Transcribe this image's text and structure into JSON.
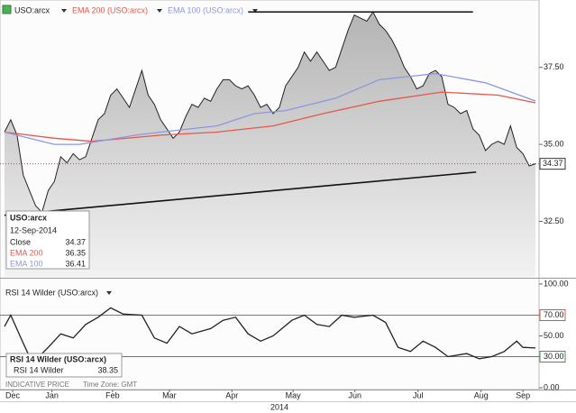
{
  "chart_data": [
    {
      "type": "line",
      "title": "USO:arcx",
      "series": [
        {
          "name": "USO:arcx",
          "color": "#222222",
          "fill": true,
          "values": [
            35.4,
            35.8,
            35.3,
            34.0,
            33.5,
            33.0,
            32.8,
            33.5,
            33.8,
            34.6,
            34.4,
            34.7,
            34.5,
            34.6,
            35.2,
            35.8,
            36.0,
            36.6,
            36.8,
            36.5,
            36.2,
            36.8,
            37.4,
            36.6,
            36.3,
            35.8,
            35.5,
            35.2,
            35.4,
            35.9,
            36.3,
            36.2,
            36.5,
            36.4,
            36.8,
            37.1,
            37.1,
            36.9,
            36.8,
            36.9,
            36.6,
            36.2,
            36.3,
            36.0,
            36.2,
            36.9,
            37.2,
            37.5,
            38.0,
            37.7,
            38.0,
            37.7,
            37.4,
            37.5,
            38.1,
            38.7,
            39.2,
            39.1,
            39.0,
            39.3,
            38.9,
            38.7,
            38.4,
            38.0,
            37.5,
            37.2,
            36.8,
            36.9,
            37.3,
            37.4,
            37.2,
            36.3,
            36.2,
            36.0,
            36.1,
            35.5,
            35.3,
            34.8,
            35.0,
            35.1,
            35.0,
            35.6,
            34.9,
            34.7,
            34.3,
            34.37
          ]
        },
        {
          "name": "EMA 200 (USO:arcx)",
          "color": "#e8564a",
          "x": [
            0,
            8,
            14,
            25,
            34,
            43,
            51,
            60,
            70,
            79,
            85
          ],
          "values": [
            35.4,
            35.2,
            35.1,
            35.3,
            35.4,
            35.6,
            36.0,
            36.4,
            36.7,
            36.6,
            36.35
          ]
        },
        {
          "name": "EMA 100 (USO:arcx)",
          "color": "#8898e2",
          "x": [
            0,
            8,
            12,
            21,
            25,
            34,
            40,
            45,
            53,
            60,
            69,
            77,
            85
          ],
          "values": [
            35.4,
            35.0,
            35.0,
            35.3,
            35.4,
            35.6,
            36.0,
            36.1,
            36.5,
            37.1,
            37.3,
            37.0,
            36.41
          ]
        }
      ],
      "trendlines": [
        {
          "x": [
            39,
            75
          ],
          "y": [
            39.3,
            39.3
          ]
        },
        {
          "x": [
            0,
            75.5
          ],
          "y": [
            32.7,
            34.1
          ]
        }
      ],
      "xlim": [
        0,
        85
      ],
      "ylim": [
        30.7,
        39.6
      ],
      "yticks": [
        {
          "value": 32.5,
          "label": "32.50"
        },
        {
          "value": 35,
          "label": "35.00"
        },
        {
          "value": 37.5,
          "label": "37.50"
        }
      ],
      "info_box": {
        "title": "USO:arcx",
        "date": "12-Sep-2014",
        "labels": [
          "Close",
          "EMA 200",
          "EMA 100"
        ]
      }
    },
    {
      "type": "line",
      "title": "RSI 14 Wilder (USO:arcx)",
      "series": [
        {
          "name": "RSI 14 Wilder",
          "color": "#222222",
          "x": [
            0,
            1,
            3,
            4,
            6,
            7,
            9,
            11,
            13,
            15,
            17,
            19,
            22,
            24,
            26,
            28,
            30,
            33,
            35,
            37,
            39,
            41,
            43,
            46,
            48,
            50,
            52,
            54,
            56,
            59,
            61,
            63,
            65,
            67,
            69,
            71,
            74,
            76,
            78,
            80,
            82,
            83,
            85
          ],
          "values": [
            59,
            70,
            43,
            30,
            33,
            39,
            52,
            48,
            61,
            68,
            77,
            71,
            70,
            48,
            43,
            59,
            52,
            57,
            65,
            68,
            52,
            45,
            50,
            65,
            70,
            61,
            59,
            70,
            68,
            70,
            63,
            39,
            35,
            45,
            39,
            30,
            33,
            28,
            30,
            35,
            45,
            39,
            38.35
          ]
        }
      ],
      "reference_lines": [
        {
          "value": 70,
          "color": "#d9534f"
        },
        {
          "value": 30,
          "color": "#3a9a3a"
        }
      ],
      "xlim": [
        0,
        85
      ],
      "ylim": [
        -1.7,
        104.3
      ],
      "yticks": [
        {
          "value": 100,
          "label": "100.00"
        },
        {
          "value": 70,
          "label": "70.00"
        },
        {
          "value": 50,
          "label": "50.00"
        },
        {
          "value": 30,
          "label": "30.00"
        },
        {
          "value": 0,
          "label": "0.00"
        }
      ],
      "xticks": [
        {
          "value": 1.3,
          "label": "Dec"
        },
        {
          "value": 7.6,
          "label": "Jan"
        },
        {
          "value": 17.3,
          "label": "Feb"
        },
        {
          "value": 26.4,
          "label": "Mar"
        },
        {
          "value": 36.4,
          "label": "Apr"
        },
        {
          "value": 46.2,
          "label": "May"
        },
        {
          "value": 56.1,
          "label": "Jun"
        },
        {
          "value": 66.2,
          "label": "Jul"
        },
        {
          "value": 76.3,
          "label": "Aug"
        },
        {
          "value": 83,
          "label": "Sep"
        }
      ],
      "year_label": "2014",
      "footer": [
        "INDICATIVE PRICE",
        "Time Zone: GMT"
      ]
    }
  ]
}
